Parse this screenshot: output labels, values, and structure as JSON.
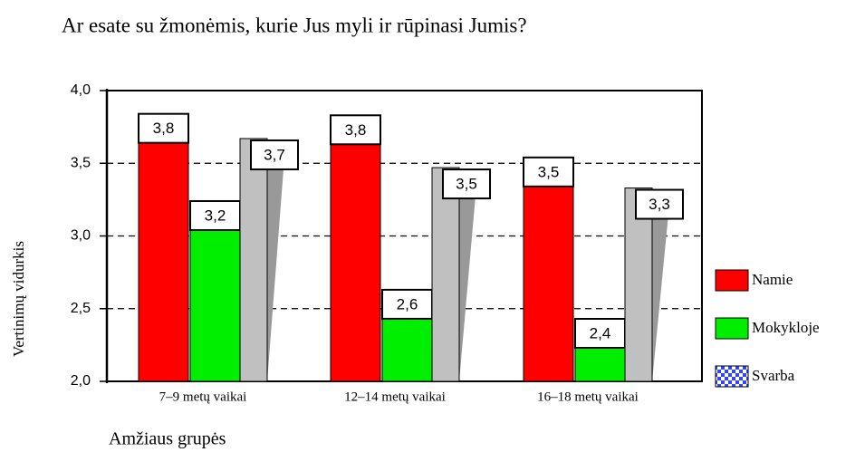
{
  "chart_data": {
    "type": "bar",
    "title": "Ar esate su žmonėmis, kurie Jus myli ir rūpinasi Jumis?",
    "x_label": "Amžiaus grupės",
    "y_label": "Vertinimų vidurkis",
    "categories": [
      "7–9 metų vaikai",
      "12–14 metų vaikai",
      "16–18 metų vaikai"
    ],
    "series": [
      {
        "name": "Namie",
        "color": "#ff0000",
        "values": [
          3.84,
          3.83,
          3.54
        ],
        "value_labels": [
          "3,8",
          "3,8",
          "3,5"
        ]
      },
      {
        "name": "Mokykloje",
        "color": "#00ee00",
        "values": [
          3.24,
          2.63,
          2.43
        ],
        "value_labels": [
          "3,2",
          "2,6",
          "2,4"
        ]
      },
      {
        "name": "Svarba",
        "color": "#c0c0c0",
        "legend_color": "#3344ff",
        "values": [
          3.67,
          3.47,
          3.33
        ],
        "value_labels": [
          "3,7",
          "3,5",
          "3,3"
        ]
      }
    ],
    "ylim": [
      2.0,
      4.0
    ],
    "yticks": [
      {
        "value": 2.0,
        "label": "2,0"
      },
      {
        "value": 2.5,
        "label": "2,5"
      },
      {
        "value": 3.0,
        "label": "3,0"
      },
      {
        "value": 3.5,
        "label": "3,5"
      },
      {
        "value": 4.0,
        "label": "4,0"
      }
    ],
    "grid": true,
    "legend": "right"
  }
}
